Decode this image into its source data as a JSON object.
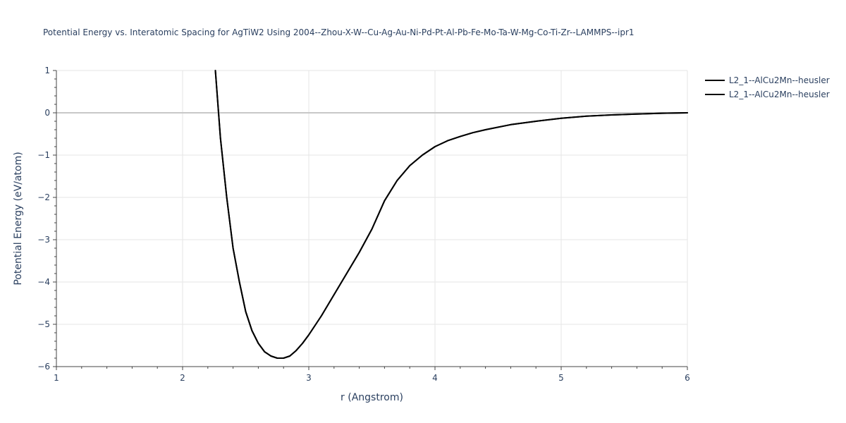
{
  "chart_data": {
    "type": "line",
    "title": "Potential Energy vs. Interatomic Spacing for AgTiW2 Using 2004--Zhou-X-W--Cu-Ag-Au-Ni-Pd-Pt-Al-Pb-Fe-Mo-Ta-W-Mg-Co-Ti-Zr--LAMMPS--ipr1",
    "xlabel": "r (Angstrom)",
    "ylabel": "Potential Energy (eV/atom)",
    "xlim": [
      1,
      6
    ],
    "ylim": [
      -6,
      1
    ],
    "x_ticks": [
      1,
      2,
      3,
      4,
      5,
      6
    ],
    "y_ticks": [
      1,
      0,
      -1,
      -2,
      -3,
      -4,
      -5,
      -6
    ],
    "x_tick_labels": [
      "1",
      "2",
      "3",
      "4",
      "5",
      "6"
    ],
    "y_tick_labels": [
      "1",
      "0",
      "−1",
      "−2",
      "−3",
      "−4",
      "−5",
      "−6"
    ],
    "grid": true,
    "legend_position": "top-right",
    "series": [
      {
        "name": "L2_1--AlCu2Mn--heusler",
        "color": "#000000",
        "x": [
          2.26,
          2.3,
          2.35,
          2.4,
          2.45,
          2.5,
          2.55,
          2.6,
          2.65,
          2.7,
          2.75,
          2.8,
          2.85,
          2.9,
          2.95,
          3.0,
          3.1,
          3.2,
          3.3,
          3.4,
          3.5,
          3.6,
          3.7,
          3.8,
          3.9,
          4.0,
          4.1,
          4.2,
          4.3,
          4.4,
          4.6,
          4.8,
          5.0,
          5.2,
          5.4,
          5.6,
          5.8,
          6.0
        ],
        "y": [
          1.0,
          -0.6,
          -2.0,
          -3.2,
          -4.0,
          -4.7,
          -5.15,
          -5.45,
          -5.65,
          -5.75,
          -5.8,
          -5.8,
          -5.75,
          -5.62,
          -5.45,
          -5.25,
          -4.8,
          -4.3,
          -3.8,
          -3.3,
          -2.75,
          -2.08,
          -1.6,
          -1.25,
          -1.0,
          -0.8,
          -0.66,
          -0.56,
          -0.47,
          -0.4,
          -0.28,
          -0.2,
          -0.13,
          -0.08,
          -0.05,
          -0.03,
          -0.01,
          0.0
        ]
      },
      {
        "name": "L2_1--AlCu2Mn--heusler",
        "color": "#000000",
        "x": [
          2.26,
          2.3,
          2.35,
          2.4,
          2.45,
          2.5,
          2.55,
          2.6,
          2.65,
          2.7,
          2.75,
          2.8,
          2.85,
          2.9,
          2.95,
          3.0,
          3.1,
          3.2,
          3.3,
          3.4,
          3.5,
          3.6,
          3.7,
          3.8,
          3.9,
          4.0,
          4.1,
          4.2,
          4.3,
          4.4,
          4.6,
          4.8,
          5.0,
          5.2,
          5.4,
          5.6,
          5.8,
          6.0
        ],
        "y": [
          1.0,
          -0.6,
          -2.0,
          -3.2,
          -4.0,
          -4.7,
          -5.15,
          -5.45,
          -5.65,
          -5.75,
          -5.8,
          -5.8,
          -5.75,
          -5.62,
          -5.45,
          -5.25,
          -4.8,
          -4.3,
          -3.8,
          -3.3,
          -2.75,
          -2.08,
          -1.6,
          -1.25,
          -1.0,
          -0.8,
          -0.66,
          -0.56,
          -0.47,
          -0.4,
          -0.28,
          -0.2,
          -0.13,
          -0.08,
          -0.05,
          -0.03,
          -0.01,
          0.0
        ]
      }
    ]
  }
}
